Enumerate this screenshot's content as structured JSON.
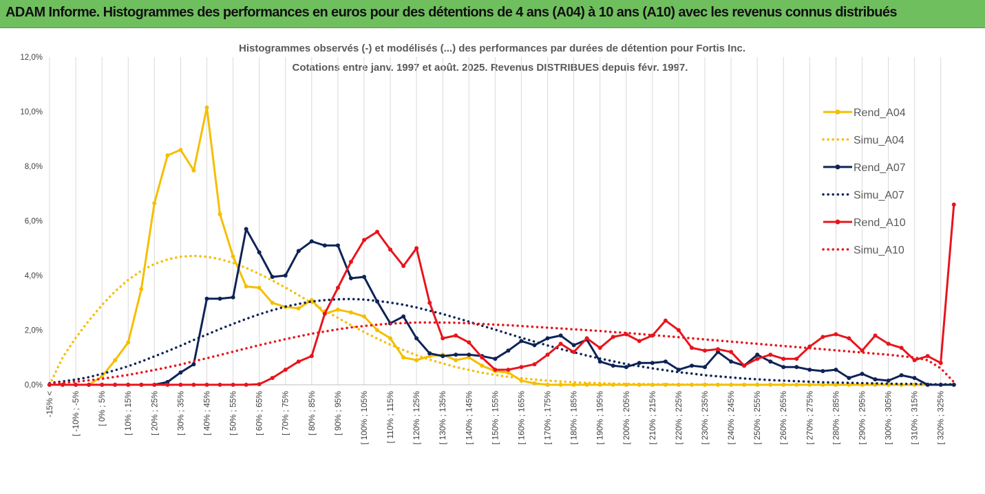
{
  "banner": {
    "title": "ADAM Informe. Histogrammes des performances en euros pour des détentions de 4 ans (A04) à 10 ans (A10) avec les revenus connus distribués"
  },
  "colors": {
    "banner": "#6fbf5e",
    "A04": "#f5be00",
    "A07": "#0e2356",
    "A10": "#e8141c",
    "grid": "#d9d9d9"
  },
  "chart_data": {
    "type": "line",
    "title": "Histogrammes observés (-) et modélisés (...) des performances par durées de détention pour Fortis Inc.",
    "subtitle": "Cotations entre janv. 1997 et août. 2025. Revenus DISTRIBUES depuis févr. 1997.",
    "legend_position": "right",
    "grid": "vertical",
    "y_ticks": [
      "0,0%",
      "2,0%",
      "4,0%",
      "6,0%",
      "8,0%",
      "10,0%",
      "12,0%"
    ],
    "ylim": [
      0,
      12
    ],
    "x_tick_labels": [
      "-15% <",
      "[ -10% ; -5%",
      "[ 0% ; 5%",
      "[ 10% ; 15%",
      "[ 20% ; 25%",
      "[ 30% ; 35%",
      "[ 40% ; 45%",
      "[ 50% ; 55%",
      "[ 60% ; 65%",
      "[ 70% ; 75%",
      "[ 80% ; 85%",
      "[ 90% ; 95%",
      "[ 100% ; 105%",
      "[ 110% ; 115%",
      "[ 120% ; 125%",
      "[ 130% ; 135%",
      "[ 140% ; 145%",
      "[ 150% ; 155%",
      "[ 160% ; 165%",
      "[ 170% ; 175%",
      "[ 180% ; 185%",
      "[ 190% ; 195%",
      "[ 200% ; 205%",
      "[ 210% ; 215%",
      "[ 220% ; 225%",
      "[ 230% ; 235%",
      "[ 240% ; 245%",
      "[ 250% ; 255%",
      "[ 260% ; 265%",
      "[ 270% ; 275%",
      "[ 280% ; 285%",
      "[ 290% ; 295%",
      "[ 300% ; 305%",
      "[ 310% ; 315%",
      "[ 320% ; 325%"
    ],
    "category_count": 70,
    "series": [
      {
        "name": "Rend_A04",
        "style": "solid",
        "color": "#f5be00",
        "values": [
          0,
          0,
          0,
          0,
          0.3,
          0.9,
          1.55,
          3.5,
          6.65,
          8.4,
          8.6,
          7.85,
          10.15,
          6.25,
          4.7,
          3.6,
          3.55,
          3.0,
          2.85,
          2.8,
          3.1,
          2.6,
          2.75,
          2.65,
          2.5,
          2.0,
          1.7,
          1.0,
          0.9,
          1.05,
          1.1,
          0.9,
          1.0,
          0.7,
          0.5,
          0.45,
          0.15,
          0.05,
          0,
          0,
          0,
          0,
          0,
          0,
          0,
          0,
          0,
          0,
          0,
          0,
          0,
          0,
          0,
          0,
          0,
          0,
          0,
          0,
          0,
          0,
          0,
          0,
          0,
          0,
          0,
          0,
          0,
          0,
          0,
          0
        ]
      },
      {
        "name": "Simu_A04",
        "style": "dotted",
        "color": "#f5be00",
        "values": [
          0.0,
          1.0,
          1.72,
          2.35,
          2.92,
          3.42,
          3.84,
          4.17,
          4.42,
          4.59,
          4.69,
          4.72,
          4.69,
          4.6,
          4.46,
          4.28,
          4.06,
          3.82,
          3.56,
          3.28,
          3.0,
          2.72,
          2.45,
          2.18,
          1.93,
          1.69,
          1.47,
          1.27,
          1.08,
          0.92,
          0.78,
          0.65,
          0.54,
          0.44,
          0.36,
          0.29,
          0.24,
          0.19,
          0.15,
          0.12,
          0.09,
          0.07,
          0.06,
          0.04,
          0.03,
          0.03,
          0.02,
          0.02,
          0.01,
          0.01,
          0.01,
          0.01,
          0.0,
          0.0,
          0.0,
          0.0,
          0.0,
          0.0,
          0.0,
          0.0,
          0.0,
          0.0,
          0.0,
          0.0,
          0.0,
          0.0,
          0.0,
          0.0,
          0.0,
          0.0
        ]
      },
      {
        "name": "Rend_A07",
        "style": "solid",
        "color": "#0e2356",
        "values": [
          0,
          0,
          0,
          0,
          0,
          0,
          0,
          0,
          0,
          0.1,
          0.45,
          0.75,
          3.15,
          3.15,
          3.2,
          5.7,
          4.85,
          3.95,
          4.0,
          4.9,
          5.25,
          5.1,
          5.1,
          3.9,
          3.95,
          3.05,
          2.25,
          2.5,
          1.7,
          1.15,
          1.05,
          1.1,
          1.1,
          1.05,
          0.95,
          1.25,
          1.6,
          1.45,
          1.7,
          1.8,
          1.45,
          1.65,
          0.85,
          0.7,
          0.65,
          0.8,
          0.8,
          0.85,
          0.55,
          0.7,
          0.65,
          1.2,
          0.85,
          0.7,
          1.1,
          0.85,
          0.65,
          0.65,
          0.55,
          0.5,
          0.55,
          0.25,
          0.4,
          0.2,
          0.15,
          0.35,
          0.25,
          0,
          0,
          0
        ]
      },
      {
        "name": "Simu_A07",
        "style": "dotted",
        "color": "#0e2356",
        "values": [
          0.06,
          0.12,
          0.19,
          0.28,
          0.4,
          0.53,
          0.68,
          0.85,
          1.04,
          1.23,
          1.43,
          1.64,
          1.84,
          2.04,
          2.23,
          2.41,
          2.58,
          2.73,
          2.86,
          2.96,
          3.05,
          3.1,
          3.13,
          3.14,
          3.12,
          3.07,
          3.01,
          2.93,
          2.83,
          2.71,
          2.59,
          2.45,
          2.31,
          2.16,
          2.02,
          1.87,
          1.72,
          1.58,
          1.44,
          1.31,
          1.19,
          1.07,
          0.96,
          0.86,
          0.76,
          0.68,
          0.6,
          0.53,
          0.46,
          0.41,
          0.35,
          0.31,
          0.27,
          0.23,
          0.2,
          0.17,
          0.15,
          0.13,
          0.11,
          0.09,
          0.08,
          0.07,
          0.06,
          0.05,
          0.04,
          0.03,
          0.03,
          0.02,
          0.02,
          0.02
        ]
      },
      {
        "name": "Rend_A10",
        "style": "solid",
        "color": "#e8141c",
        "values": [
          0,
          0,
          0,
          0,
          0,
          0,
          0,
          0,
          0,
          0,
          0,
          0,
          0,
          0,
          0,
          0,
          0.02,
          0.25,
          0.55,
          0.85,
          1.05,
          2.6,
          3.55,
          4.5,
          5.3,
          5.6,
          4.95,
          4.35,
          5.0,
          3.0,
          1.7,
          1.8,
          1.55,
          1.0,
          0.55,
          0.55,
          0.65,
          0.75,
          1.1,
          1.5,
          1.2,
          1.7,
          1.35,
          1.75,
          1.85,
          1.6,
          1.8,
          2.35,
          2.0,
          1.35,
          1.25,
          1.3,
          1.2,
          0.7,
          0.95,
          1.1,
          0.95,
          0.95,
          1.4,
          1.75,
          1.85,
          1.7,
          1.25,
          1.8,
          1.5,
          1.35,
          0.9,
          1.05,
          0.8,
          6.6
        ]
      },
      {
        "name": "Simu_A10",
        "style": "dotted",
        "color": "#e8141c",
        "values": [
          0.04,
          0.07,
          0.11,
          0.16,
          0.22,
          0.29,
          0.36,
          0.45,
          0.54,
          0.64,
          0.74,
          0.86,
          0.97,
          1.09,
          1.21,
          1.33,
          1.45,
          1.56,
          1.67,
          1.77,
          1.87,
          1.95,
          2.03,
          2.1,
          2.15,
          2.2,
          2.24,
          2.26,
          2.28,
          2.28,
          2.28,
          2.27,
          2.25,
          2.23,
          2.2,
          2.18,
          2.15,
          2.12,
          2.09,
          2.06,
          2.03,
          2.0,
          1.97,
          1.93,
          1.9,
          1.86,
          1.82,
          1.78,
          1.74,
          1.7,
          1.66,
          1.62,
          1.58,
          1.54,
          1.5,
          1.46,
          1.42,
          1.38,
          1.34,
          1.3,
          1.26,
          1.22,
          1.18,
          1.14,
          1.1,
          1.05,
          1.0,
          0.9,
          0.6,
          0.1
        ]
      }
    ]
  }
}
